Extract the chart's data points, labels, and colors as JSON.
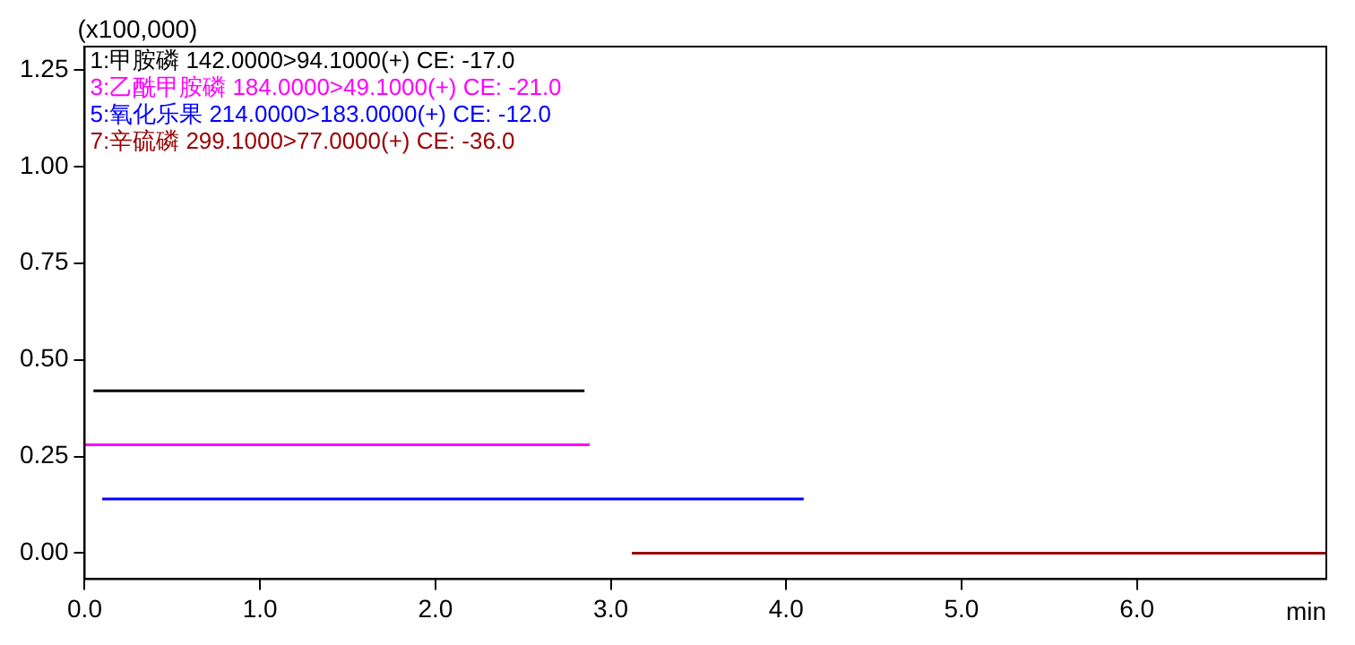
{
  "chart_data": {
    "type": "line",
    "ylabel": "(x100,000)",
    "xlabel": "min",
    "xlim": [
      0,
      7.08
    ],
    "xticks": [
      {
        "value": 0,
        "label": "0.0"
      },
      {
        "value": 1,
        "label": "1.0"
      },
      {
        "value": 2,
        "label": "2.0"
      },
      {
        "value": 3,
        "label": "3.0"
      },
      {
        "value": 4,
        "label": "4.0"
      },
      {
        "value": 5,
        "label": "5.0"
      },
      {
        "value": 6,
        "label": "6.0"
      }
    ],
    "ylim": [
      -0.067,
      1.31
    ],
    "yticks": [
      {
        "value": 0,
        "label": "0.00"
      },
      {
        "value": 0.25,
        "label": "0.25"
      },
      {
        "value": 0.5,
        "label": "0.50"
      },
      {
        "value": 0.75,
        "label": "0.75"
      },
      {
        "value": 1,
        "label": "1.00"
      },
      {
        "value": 1.25,
        "label": "1.25"
      }
    ],
    "grid": false,
    "legend": "top left",
    "marker": "none",
    "line_style": "solid",
    "series": [
      {
        "name": "1:甲胺磷 142.0000>94.1000(+) CE: -17.0",
        "color": "#000000",
        "x": [
          0.05,
          1.0,
          2.0,
          2.85
        ],
        "values": [
          0.42,
          0.42,
          0.42,
          0.42
        ]
      },
      {
        "name": "3:乙酰甲胺磷 184.0000>49.1000(+) CE: -21.0",
        "color": "#ff00ff",
        "x": [
          0,
          1.0,
          2.0,
          2.88
        ],
        "values": [
          0.28,
          0.28,
          0.28,
          0.28
        ]
      },
      {
        "name": "5:氧化乐果 214.0000>183.0000(+) CE: -12.0",
        "color": "#0000ff",
        "x": [
          0.1,
          1.0,
          2.0,
          3.0,
          4.1
        ],
        "values": [
          0.14,
          0.14,
          0.14,
          0.14,
          0.14
        ]
      },
      {
        "name": "7:辛硫磷 299.1000>77.0000(+) CE: -36.0",
        "color": "#990000",
        "x": [
          3.12,
          4.0,
          5.0,
          6.0,
          7.08
        ],
        "values": [
          0,
          0,
          0,
          0,
          0
        ]
      }
    ]
  }
}
